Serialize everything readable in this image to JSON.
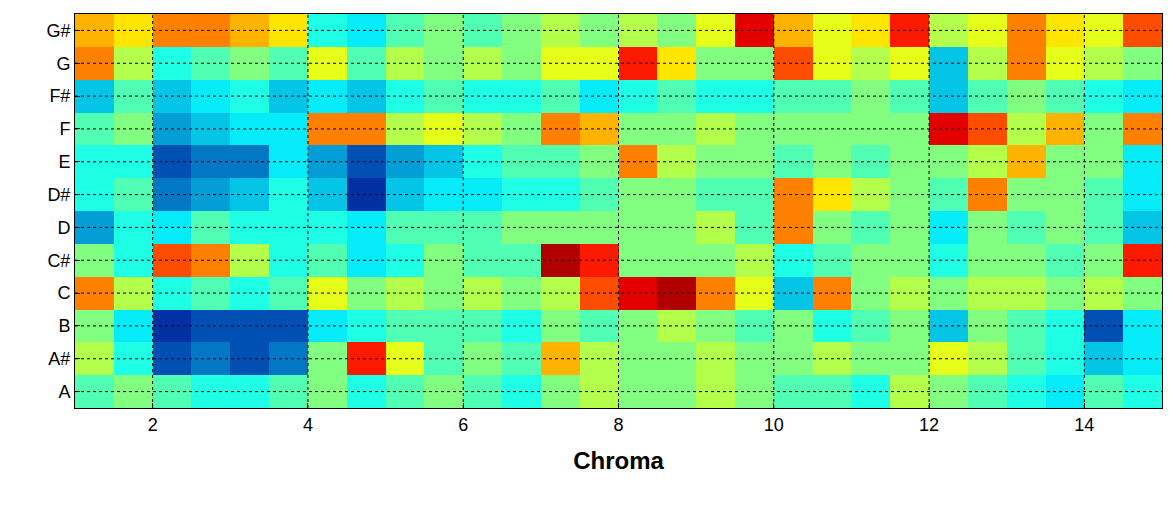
{
  "chart_data": {
    "type": "heatmap",
    "x_label": "Chroma",
    "categories": [
      "A",
      "A#",
      "B",
      "C",
      "C#",
      "D",
      "D#",
      "E",
      "F",
      "F#",
      "G",
      "G#"
    ],
    "x": [
      1.25,
      1.75,
      2.25,
      2.75,
      3.25,
      3.75,
      4.25,
      4.75,
      5.25,
      5.75,
      6.25,
      6.75,
      7.25,
      7.75,
      8.25,
      8.75,
      9.25,
      9.75,
      10.25,
      10.75,
      11.25,
      11.75,
      12.25,
      12.75,
      13.25,
      13.75,
      14.25,
      14.75
    ],
    "cells": [
      [
        0.45,
        0.5,
        0.45,
        0.4,
        0.4,
        0.45,
        0.5,
        0.4,
        0.45,
        0.5,
        0.45,
        0.4,
        0.5,
        0.55,
        0.5,
        0.5,
        0.55,
        0.5,
        0.45,
        0.45,
        0.4,
        0.55,
        0.5,
        0.45,
        0.4,
        0.35,
        0.45,
        0.4
      ],
      [
        0.55,
        0.4,
        0.15,
        0.2,
        0.15,
        0.2,
        0.5,
        0.85,
        0.6,
        0.45,
        0.5,
        0.45,
        0.7,
        0.55,
        0.5,
        0.5,
        0.55,
        0.5,
        0.5,
        0.55,
        0.5,
        0.5,
        0.6,
        0.55,
        0.45,
        0.4,
        0.3,
        0.35
      ],
      [
        0.5,
        0.35,
        0.1,
        0.15,
        0.15,
        0.15,
        0.35,
        0.4,
        0.45,
        0.45,
        0.45,
        0.4,
        0.5,
        0.45,
        0.5,
        0.55,
        0.5,
        0.45,
        0.5,
        0.4,
        0.45,
        0.5,
        0.3,
        0.5,
        0.45,
        0.4,
        0.15,
        0.35
      ],
      [
        0.75,
        0.55,
        0.4,
        0.45,
        0.4,
        0.45,
        0.6,
        0.5,
        0.55,
        0.5,
        0.55,
        0.5,
        0.55,
        0.8,
        0.9,
        0.95,
        0.75,
        0.6,
        0.3,
        0.75,
        0.5,
        0.55,
        0.5,
        0.55,
        0.55,
        0.5,
        0.55,
        0.5
      ],
      [
        0.5,
        0.4,
        0.8,
        0.75,
        0.55,
        0.4,
        0.45,
        0.35,
        0.4,
        0.5,
        0.45,
        0.45,
        0.95,
        0.85,
        0.5,
        0.5,
        0.5,
        0.55,
        0.4,
        0.45,
        0.5,
        0.5,
        0.4,
        0.5,
        0.5,
        0.45,
        0.5,
        0.85
      ],
      [
        0.25,
        0.4,
        0.35,
        0.45,
        0.4,
        0.4,
        0.4,
        0.35,
        0.45,
        0.45,
        0.45,
        0.5,
        0.5,
        0.5,
        0.5,
        0.5,
        0.55,
        0.45,
        0.75,
        0.5,
        0.45,
        0.5,
        0.35,
        0.5,
        0.45,
        0.5,
        0.45,
        0.3
      ],
      [
        0.4,
        0.45,
        0.2,
        0.25,
        0.3,
        0.4,
        0.3,
        0.1,
        0.3,
        0.35,
        0.35,
        0.4,
        0.4,
        0.45,
        0.5,
        0.5,
        0.45,
        0.45,
        0.75,
        0.65,
        0.55,
        0.5,
        0.45,
        0.75,
        0.5,
        0.5,
        0.45,
        0.35
      ],
      [
        0.4,
        0.4,
        0.15,
        0.2,
        0.2,
        0.35,
        0.25,
        0.15,
        0.25,
        0.3,
        0.4,
        0.45,
        0.45,
        0.5,
        0.75,
        0.55,
        0.5,
        0.5,
        0.45,
        0.5,
        0.45,
        0.5,
        0.5,
        0.55,
        0.7,
        0.5,
        0.5,
        0.35
      ],
      [
        0.45,
        0.5,
        0.25,
        0.3,
        0.35,
        0.35,
        0.75,
        0.75,
        0.55,
        0.6,
        0.55,
        0.5,
        0.75,
        0.7,
        0.5,
        0.5,
        0.55,
        0.5,
        0.5,
        0.5,
        0.5,
        0.5,
        0.9,
        0.8,
        0.55,
        0.7,
        0.5,
        0.75
      ],
      [
        0.3,
        0.45,
        0.3,
        0.35,
        0.4,
        0.3,
        0.35,
        0.3,
        0.4,
        0.45,
        0.4,
        0.4,
        0.45,
        0.35,
        0.4,
        0.45,
        0.4,
        0.4,
        0.45,
        0.45,
        0.5,
        0.45,
        0.3,
        0.45,
        0.5,
        0.45,
        0.4,
        0.35
      ],
      [
        0.75,
        0.55,
        0.4,
        0.45,
        0.5,
        0.45,
        0.6,
        0.45,
        0.55,
        0.5,
        0.55,
        0.5,
        0.6,
        0.6,
        0.85,
        0.65,
        0.5,
        0.5,
        0.8,
        0.6,
        0.55,
        0.6,
        0.3,
        0.55,
        0.75,
        0.6,
        0.55,
        0.5
      ],
      [
        0.7,
        0.65,
        0.75,
        0.75,
        0.7,
        0.65,
        0.4,
        0.35,
        0.45,
        0.5,
        0.45,
        0.5,
        0.55,
        0.5,
        0.55,
        0.5,
        0.6,
        0.9,
        0.7,
        0.6,
        0.65,
        0.85,
        0.55,
        0.6,
        0.75,
        0.65,
        0.6,
        0.8
      ]
    ],
    "zlim": [
      0,
      1
    ],
    "color": "jet",
    "xlim": [
      1,
      15
    ],
    "xticks": [
      2,
      4,
      6,
      8,
      10,
      12,
      14
    ],
    "grid": true
  }
}
